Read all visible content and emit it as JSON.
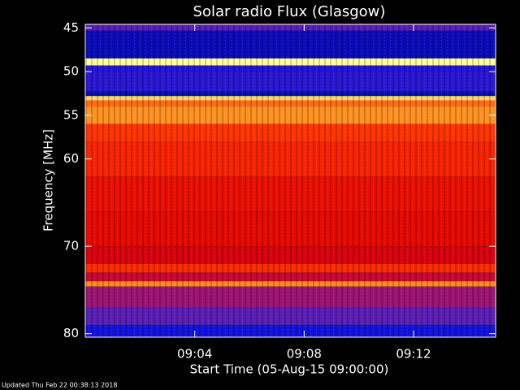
{
  "chart_data": {
    "type": "spectrogram",
    "title": "Solar radio Flux (Glasgow)",
    "xlabel": "Start Time (05-Aug-15 09:00:00)",
    "ylabel": "Frequency [MHz]",
    "footer": "Updated Thu Feb 22 00:38:13 2018",
    "xlim": [
      0,
      15
    ],
    "xticks": [
      {
        "value": 4,
        "label": "09:04"
      },
      {
        "value": 8,
        "label": "09:08"
      },
      {
        "value": 12,
        "label": "09:12"
      }
    ],
    "ylim": [
      44.6,
      80.4
    ],
    "yticks": [
      45,
      50,
      55,
      60,
      70,
      80
    ],
    "colormap": [
      "#000060",
      "#1010e0",
      "#5020c0",
      "#b01060",
      "#e00000",
      "#ff3000",
      "#ff9020",
      "#ffffa0"
    ],
    "bands": [
      {
        "from": 44.6,
        "to": 45.3,
        "level": 0.3
      },
      {
        "from": 45.3,
        "to": 48.5,
        "level": 0.1
      },
      {
        "from": 48.5,
        "to": 49.3,
        "level": 1.0
      },
      {
        "from": 49.3,
        "to": 50.0,
        "level": 0.18
      },
      {
        "from": 50.0,
        "to": 52.3,
        "level": 0.2
      },
      {
        "from": 52.3,
        "to": 52.8,
        "level": 0.1
      },
      {
        "from": 52.8,
        "to": 53.3,
        "level": 0.95
      },
      {
        "from": 53.3,
        "to": 54.0,
        "level": 0.8
      },
      {
        "from": 54.0,
        "to": 56.0,
        "level": 0.86
      },
      {
        "from": 56.0,
        "to": 58.0,
        "level": 0.72
      },
      {
        "from": 58.0,
        "to": 62.0,
        "level": 0.68
      },
      {
        "from": 62.0,
        "to": 66.0,
        "level": 0.62
      },
      {
        "from": 66.0,
        "to": 70.0,
        "level": 0.6
      },
      {
        "from": 70.0,
        "to": 72.0,
        "level": 0.55
      },
      {
        "from": 72.0,
        "to": 73.0,
        "level": 0.7
      },
      {
        "from": 73.0,
        "to": 74.0,
        "level": 0.5
      },
      {
        "from": 74.0,
        "to": 74.6,
        "level": 0.85
      },
      {
        "from": 74.6,
        "to": 77.0,
        "level": 0.4
      },
      {
        "from": 77.0,
        "to": 79.0,
        "level": 0.3
      },
      {
        "from": 79.0,
        "to": 80.4,
        "level": 0.15
      }
    ]
  }
}
